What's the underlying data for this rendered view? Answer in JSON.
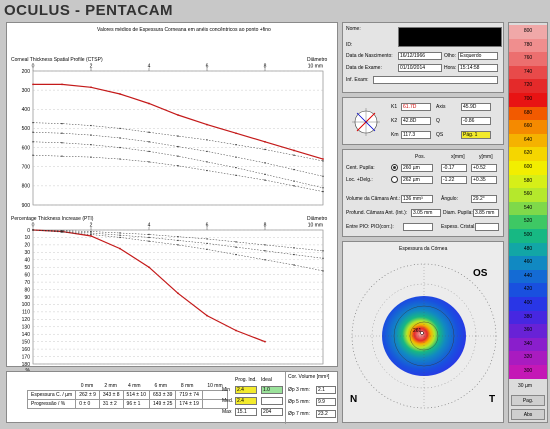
{
  "app": {
    "title": "OCULUS - PENTACAM"
  },
  "charts": {
    "panel_title": "Valores médios de Espessura Corneana em anéis concêntricos ao ponto +fino",
    "top": {
      "title": "Corneal Thickness Spatial Profile (CTSP)",
      "diameter_label": "Diâmetro",
      "unit": "10 mm",
      "x_ticks": [
        "0",
        "2",
        "4",
        "6",
        "8"
      ],
      "y_ticks": [
        "200",
        "300",
        "400",
        "500",
        "600",
        "700",
        "800",
        "900"
      ]
    },
    "bottom": {
      "title": "Percentage Thickness Increase (PTI)",
      "diameter_label": "Diâmetro",
      "unit": "10 mm",
      "x_ticks": [
        "0",
        "2",
        "4",
        "6",
        "8"
      ],
      "y_ticks": [
        "0",
        "10",
        "20",
        "30",
        "40",
        "50",
        "60",
        "70",
        "80",
        "90",
        "100",
        "110",
        "120",
        "130",
        "140",
        "150",
        "160",
        "170",
        "180"
      ],
      "y_unit": "%"
    }
  },
  "chart_data": [
    {
      "type": "line",
      "title": "Corneal Thickness Spatial Profile (CTSP)",
      "xlabel": "Diâmetro",
      "ylim": [
        200,
        900
      ],
      "xlim": [
        0,
        10
      ],
      "y_inverted": true,
      "series": [
        {
          "x": [
            0,
            1,
            2,
            3,
            4,
            5,
            6,
            7,
            8,
            9,
            10
          ],
          "values": [
            270,
            270,
            285,
            320,
            370,
            430,
            480,
            525,
            570,
            615,
            660
          ]
        },
        {
          "x": [
            0,
            1,
            2,
            3,
            4,
            5,
            6,
            7,
            8,
            9,
            10
          ],
          "values": [
            470,
            475,
            485,
            500,
            520,
            540,
            560,
            585,
            610,
            640,
            670
          ]
        },
        {
          "x": [
            0,
            1,
            2,
            3,
            4,
            5,
            6,
            7,
            8,
            9,
            10
          ],
          "values": [
            520,
            525,
            535,
            550,
            570,
            595,
            620,
            650,
            680,
            715,
            750
          ]
        },
        {
          "x": [
            0,
            1,
            2,
            3,
            4,
            5,
            6,
            7,
            8,
            9,
            10
          ],
          "values": [
            570,
            575,
            585,
            600,
            620,
            645,
            675,
            705,
            740,
            775,
            810
          ]
        },
        {
          "x": [
            0,
            1,
            2,
            3,
            4,
            5,
            6,
            7,
            8,
            9,
            10
          ],
          "values": [
            640,
            645,
            650,
            660,
            675,
            695,
            720,
            745,
            770,
            800,
            830
          ]
        }
      ]
    },
    {
      "type": "line",
      "title": "Percentage Thickness Increase (PTI)",
      "xlabel": "Diâmetro",
      "ylim": [
        0,
        180
      ],
      "xlim": [
        0,
        10
      ],
      "y_inverted": true,
      "series": [
        {
          "x": [
            0,
            1,
            2,
            3,
            4,
            5,
            6,
            7,
            8
          ],
          "values": [
            0,
            2,
            8,
            25,
            50,
            85,
            115,
            135,
            150
          ]
        },
        {
          "x": [
            0,
            1,
            2,
            3,
            4,
            5,
            6,
            7,
            8,
            9,
            10
          ],
          "values": [
            0,
            1,
            2,
            4,
            6,
            9,
            12,
            16,
            20,
            24,
            28
          ]
        },
        {
          "x": [
            0,
            1,
            2,
            3,
            4,
            5,
            6,
            7,
            8,
            9,
            10
          ],
          "values": [
            0,
            2,
            4,
            7,
            10,
            14,
            18,
            23,
            28,
            33,
            38
          ]
        },
        {
          "x": [
            0,
            1,
            2,
            3,
            4,
            5,
            6,
            7,
            8,
            9,
            10
          ],
          "values": [
            0,
            3,
            6,
            10,
            15,
            20,
            26,
            33,
            40,
            47,
            55
          ]
        }
      ]
    }
  ],
  "table": {
    "headers": [
      "",
      "0 mm",
      "2 mm",
      "4 mm",
      "6 mm",
      "8 mm",
      "10 mm"
    ],
    "rows": [
      {
        "label": "Espessura C. / µm",
        "values": [
          "262 ± 9",
          "343 ± 8",
          "514 ± 10",
          "653 ± 39",
          "719 ± 74",
          ""
        ]
      },
      {
        "label": "Progressão / %",
        "values": [
          "0 ± 0",
          "31 ± 2",
          "96 ± 1",
          "149 ± 25",
          "174 ± 19",
          ""
        ]
      }
    ],
    "prog_headers": [
      "Prog. Ind.",
      "Ideal"
    ],
    "prog_rows": [
      {
        "label": "Min",
        "values": [
          "2.4",
          "1.0"
        ]
      },
      {
        "label": "Med.",
        "values": [
          "2.4",
          ""
        ]
      },
      {
        "label": "Max",
        "values": [
          "15.1",
          "204"
        ]
      }
    ],
    "volume": {
      "title": "Cor. Volume [mm³]",
      "rows": [
        {
          "label": "Øp 3 mm:",
          "value": "2.1"
        },
        {
          "label": "Øp 5 mm:",
          "value": "9.9"
        },
        {
          "label": "Øp 7 mm:",
          "value": "23.2"
        }
      ]
    }
  },
  "patient": {
    "name_label": "Nome:",
    "name_value": "",
    "id_label": "ID:",
    "id_value": "",
    "birth_label": "Data de Nascimento:",
    "birth_value": "16/12/1966",
    "eye_label": "Olho:",
    "eye_value": "Esquerdo",
    "exam_label": "Data de Exame:",
    "exam_value": "01/10/2014",
    "time_label": "Hora:",
    "time_value": "15:14:58",
    "info_label": "Inf. Exam:",
    "info_value": ""
  },
  "kvals": {
    "k1_label": "K1",
    "k1_value": "61.7D",
    "axis_label": "Axis",
    "axis_value": "45.9D",
    "k2_label": "K2",
    "k2_value": "42.8D",
    "q_label": "Q",
    "q_value": "-0.86",
    "km_label": "Km",
    "km_value": "117.3",
    "qs_label": "QS",
    "qs_value": "Pág. 1"
  },
  "pupil": {
    "col_headers": [
      "Pos.",
      "x[mm]",
      "y[mm]"
    ],
    "rows": [
      {
        "label": "Cent. Pupila:",
        "pos": "260 µm",
        "x": "-0.17",
        "y": "+0.52"
      },
      {
        "label": "Loc. +Delg.:",
        "pos": "262 µm",
        "x": "-1.22",
        "y": "+0.35"
      }
    ],
    "volume_label": "Volume da Câmara Ant.:",
    "volume_value": "136 mm³",
    "angle_label": "Ângulo:",
    "angle_value": "29.2°",
    "depth_label": "Profund. Câmara Ant. (Int.):",
    "depth_value": "3.05 mm",
    "diam_label": "Diam. Pupila:",
    "diam_value": "3.85 mm",
    "pio_label": "Entre PIO: PIO(corr.):",
    "pio_value": "",
    "lens_label": "Espess. Cristal.:",
    "lens_value": ""
  },
  "map": {
    "title": "Espessura da Córnea",
    "eye": "OS",
    "nasal": "N",
    "temporal": "T",
    "center_value": "261"
  },
  "scale": {
    "values": [
      "800",
      "780",
      "760",
      "740",
      "720",
      "700",
      "680",
      "660",
      "640",
      "620",
      "600",
      "580",
      "560",
      "540",
      "520",
      "500",
      "480",
      "460",
      "440",
      "420",
      "400",
      "380",
      "360",
      "340",
      "320",
      "300"
    ],
    "colors": [
      "#f0a8a8",
      "#f08e8e",
      "#ec6f6f",
      "#e84a4a",
      "#e42a2a",
      "#e81313",
      "#f25a00",
      "#f58a00",
      "#f5b200",
      "#f5d600",
      "#f2ee00",
      "#d6ef18",
      "#b5e82c",
      "#7fd94a",
      "#3ec864",
      "#17b883",
      "#12a6a6",
      "#1189c2",
      "#146bd4",
      "#1950df",
      "#2936e6",
      "#4727e1",
      "#6822d6",
      "#8a1ecc",
      "#a91bc0",
      "#c418b6"
    ],
    "unit": "30 µm",
    "buttons": [
      "Pag.",
      "Abs"
    ]
  }
}
